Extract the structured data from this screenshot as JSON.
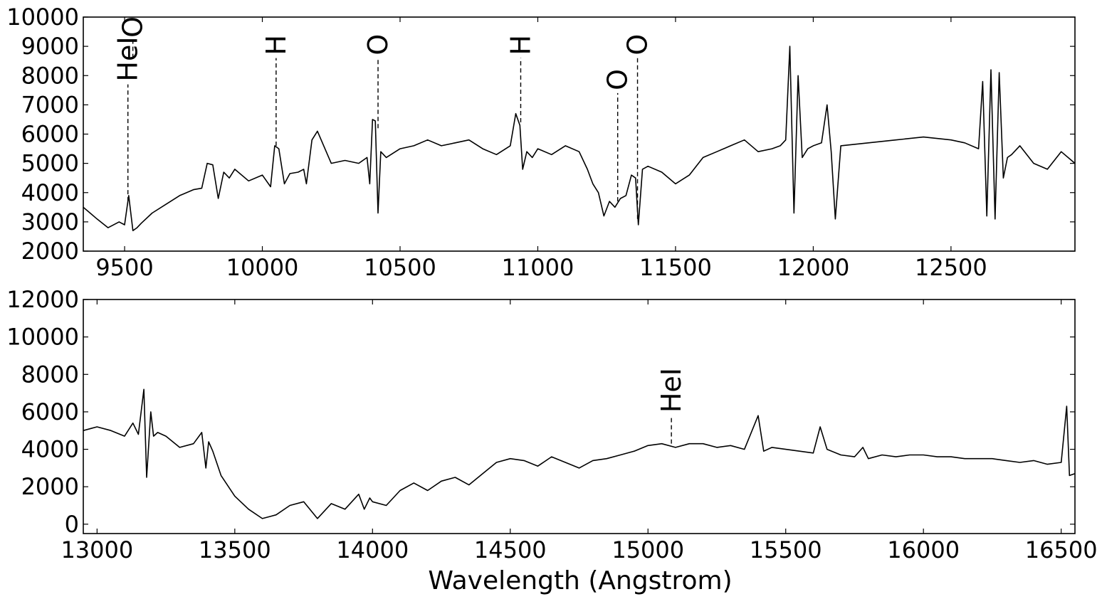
{
  "chart_data": [
    {
      "type": "line",
      "title": "",
      "xlabel": "",
      "ylabel": "",
      "xlim": [
        9350,
        12950
      ],
      "ylim": [
        2000,
        10000
      ],
      "xticks": [
        9500,
        10000,
        10500,
        11000,
        11500,
        12000,
        12500
      ],
      "yticks": [
        2000,
        3000,
        4000,
        5000,
        6000,
        7000,
        8000,
        9000,
        10000
      ],
      "grid": false,
      "series": [
        {
          "x": [
            9350,
            9400,
            9440,
            9480,
            9500,
            9515,
            9530,
            9545,
            9560,
            9600,
            9650,
            9700,
            9750,
            9780,
            9800,
            9820,
            9840,
            9860,
            9880,
            9900,
            9950,
            10000,
            10030,
            10045,
            10060,
            10080,
            10100,
            10130,
            10150,
            10160,
            10180,
            10200,
            10250,
            10300,
            10350,
            10380,
            10390,
            10400,
            10410,
            10420,
            10430,
            10450,
            10500,
            10550,
            10600,
            10650,
            10700,
            10750,
            10800,
            10850,
            10900,
            10920,
            10935,
            10945,
            10960,
            10980,
            11000,
            11050,
            11100,
            11150,
            11180,
            11200,
            11220,
            11240,
            11260,
            11280,
            11300,
            11320,
            11340,
            11355,
            11365,
            11380,
            11400,
            11450,
            11500,
            11550,
            11600,
            11650,
            11700,
            11750,
            11800,
            11850,
            11880,
            11900,
            11915,
            11930,
            11945,
            11960,
            11980,
            12000,
            12030,
            12050,
            12065,
            12080,
            12100,
            12200,
            12300,
            12400,
            12500,
            12550,
            12600,
            12615,
            12630,
            12645,
            12660,
            12675,
            12690,
            12705,
            12720,
            12750,
            12800,
            12850,
            12900,
            12950
          ],
          "y": [
            3500,
            3100,
            2800,
            3000,
            2900,
            3900,
            2700,
            2800,
            2950,
            3300,
            3600,
            3900,
            4100,
            4150,
            5000,
            4950,
            3800,
            4700,
            4500,
            4800,
            4400,
            4600,
            4200,
            5600,
            5500,
            4300,
            4650,
            4700,
            4800,
            4300,
            5800,
            6100,
            5000,
            5100,
            5000,
            5200,
            4300,
            6500,
            6450,
            3300,
            5400,
            5200,
            5500,
            5600,
            5800,
            5600,
            5700,
            5800,
            5500,
            5300,
            5600,
            6700,
            6300,
            4800,
            5400,
            5200,
            5500,
            5300,
            5600,
            5400,
            4800,
            4300,
            4000,
            3200,
            3700,
            3500,
            3800,
            3900,
            4600,
            4500,
            2900,
            4800,
            4900,
            4700,
            4300,
            4600,
            5200,
            5400,
            5600,
            5800,
            5400,
            5500,
            5600,
            5800,
            9000,
            3300,
            8000,
            5200,
            5500,
            5600,
            5700,
            7000,
            5400,
            3100,
            5600,
            5700,
            5800,
            5900,
            5800,
            5700,
            5500,
            7800,
            3200,
            8200,
            3100,
            8100,
            4500,
            5200,
            5300,
            5600,
            5000,
            4800,
            5400,
            5000
          ]
        }
      ],
      "line_ids": [
        {
          "label": "HeI",
          "x": 9512,
          "y_top": 3700,
          "label_y": 7700
        },
        {
          "label": "O",
          "x": 9530,
          "y_top": 8600,
          "label_y": 9200
        },
        {
          "label": "H",
          "x": 10050,
          "y_top": 5600,
          "label_y": 8600
        },
        {
          "label": "O",
          "x": 10420,
          "y_top": 6200,
          "label_y": 8600
        },
        {
          "label": "H",
          "x": 10938,
          "y_top": 6400,
          "label_y": 8600
        },
        {
          "label": "O",
          "x": 11290,
          "y_top": 3700,
          "label_y": 7400
        },
        {
          "label": "O",
          "x": 11362,
          "y_top": 3100,
          "label_y": 8600
        }
      ]
    },
    {
      "type": "line",
      "title": "",
      "xlabel": "Wavelength (Angstrom)",
      "ylabel": "",
      "xlim": [
        12950,
        16550
      ],
      "ylim": [
        -500,
        12000
      ],
      "xticks": [
        13000,
        13500,
        14000,
        14500,
        15000,
        15500,
        16000,
        16500
      ],
      "yticks": [
        0,
        2000,
        4000,
        6000,
        8000,
        10000,
        12000
      ],
      "grid": false,
      "series": [
        {
          "x": [
            12950,
            13000,
            13050,
            13100,
            13130,
            13150,
            13170,
            13180,
            13195,
            13205,
            13220,
            13250,
            13300,
            13350,
            13380,
            13395,
            13405,
            13420,
            13450,
            13500,
            13550,
            13600,
            13650,
            13700,
            13750,
            13800,
            13850,
            13900,
            13950,
            13970,
            13990,
            14000,
            14050,
            14100,
            14150,
            14200,
            14250,
            14300,
            14350,
            14400,
            14450,
            14500,
            14550,
            14600,
            14650,
            14700,
            14750,
            14800,
            14850,
            14900,
            14950,
            15000,
            15050,
            15100,
            15150,
            15200,
            15250,
            15300,
            15350,
            15400,
            15420,
            15450,
            15500,
            15550,
            15600,
            15625,
            15650,
            15700,
            15750,
            15780,
            15800,
            15850,
            15900,
            15950,
            16000,
            16050,
            16100,
            16150,
            16200,
            16250,
            16300,
            16350,
            16400,
            16450,
            16500,
            16520,
            16530,
            16550
          ],
          "y": [
            5000,
            5200,
            5000,
            4700,
            5400,
            4800,
            7200,
            2500,
            6000,
            4700,
            4900,
            4700,
            4100,
            4300,
            4900,
            3000,
            4400,
            3900,
            2600,
            1500,
            800,
            300,
            500,
            1000,
            1200,
            300,
            1100,
            800,
            1600,
            800,
            1400,
            1200,
            1000,
            1800,
            2200,
            1800,
            2300,
            2500,
            2100,
            2700,
            3300,
            3500,
            3400,
            3100,
            3600,
            3300,
            3000,
            3400,
            3500,
            3700,
            3900,
            4200,
            4300,
            4100,
            4300,
            4300,
            4100,
            4200,
            4000,
            5800,
            3900,
            4100,
            4000,
            3900,
            3800,
            5200,
            4000,
            3700,
            3600,
            4100,
            3500,
            3700,
            3600,
            3700,
            3700,
            3600,
            3600,
            3500,
            3500,
            3500,
            3400,
            3300,
            3400,
            3200,
            3300,
            6300,
            2600,
            2700
          ]
        }
      ],
      "line_ids": [
        {
          "label": "HeI",
          "x": 15085,
          "y_top": 4300,
          "label_y": 5800
        }
      ]
    }
  ]
}
